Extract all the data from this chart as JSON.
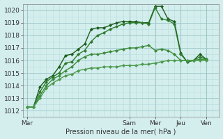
{
  "bg_color": "#d4eeee",
  "grid_color_major": "#a0c8c8",
  "grid_color_minor": "#b8dcdc",
  "xlabel": "Pression niveau de la mer( hPa )",
  "ylim": [
    1011.5,
    1020.5
  ],
  "yticks": [
    1012,
    1013,
    1014,
    1015,
    1016,
    1017,
    1018,
    1019,
    1020
  ],
  "xtick_labels": [
    "Mar",
    "Sam",
    "Mer",
    "Jeu",
    "Ven"
  ],
  "xtick_positions": [
    0,
    96,
    120,
    144,
    168
  ],
  "major_vlines": [
    0,
    96,
    120,
    144,
    168
  ],
  "xlim": [
    -4,
    180
  ],
  "series": [
    {
      "x": [
        0,
        6,
        12,
        18,
        24,
        30,
        36,
        42,
        48,
        54,
        60,
        66,
        72,
        78,
        84,
        90,
        96,
        102,
        108,
        114,
        120,
        126,
        132,
        138,
        144,
        150,
        156,
        162,
        168
      ],
      "y": [
        1012.3,
        1012.3,
        1013.9,
        1014.5,
        1014.8,
        1015.5,
        1016.4,
        1016.5,
        1016.9,
        1017.3,
        1018.5,
        1018.6,
        1018.6,
        1018.8,
        1019.0,
        1019.1,
        1019.1,
        1019.1,
        1019.0,
        1019.0,
        1020.3,
        1020.3,
        1019.3,
        1019.1,
        1016.6,
        1015.9,
        1016.0,
        1016.5,
        1016.1
      ],
      "marker": "D",
      "markersize": 2.0,
      "linewidth": 1.0,
      "color": "#1a5c1a"
    },
    {
      "x": [
        0,
        6,
        12,
        18,
        24,
        30,
        36,
        42,
        48,
        54,
        60,
        66,
        72,
        78,
        84,
        90,
        96,
        102,
        108,
        114,
        120,
        126,
        132,
        138,
        144,
        150,
        156,
        162,
        168
      ],
      "y": [
        1012.3,
        1012.3,
        1013.5,
        1014.3,
        1014.7,
        1015.0,
        1015.8,
        1015.9,
        1016.5,
        1016.8,
        1017.5,
        1018.0,
        1018.2,
        1018.5,
        1018.7,
        1018.9,
        1019.0,
        1019.0,
        1019.0,
        1018.9,
        1020.2,
        1019.3,
        1019.2,
        1018.9,
        1016.5,
        1015.9,
        1016.0,
        1016.3,
        1016.1
      ],
      "marker": "D",
      "markersize": 2.0,
      "linewidth": 1.0,
      "color": "#2d7a2d"
    },
    {
      "x": [
        0,
        6,
        12,
        18,
        24,
        30,
        36,
        42,
        48,
        54,
        60,
        66,
        72,
        78,
        84,
        90,
        96,
        102,
        108,
        114,
        120,
        126,
        132,
        138,
        144,
        150,
        156,
        162,
        168
      ],
      "y": [
        1012.3,
        1012.3,
        1013.2,
        1014.0,
        1014.5,
        1014.8,
        1015.2,
        1015.5,
        1016.0,
        1016.3,
        1016.5,
        1016.5,
        1016.6,
        1016.7,
        1016.8,
        1016.9,
        1017.0,
        1017.0,
        1017.1,
        1017.2,
        1016.8,
        1016.9,
        1016.8,
        1016.5,
        1016.0,
        1016.0,
        1016.0,
        1016.1,
        1016.1
      ],
      "marker": "D",
      "markersize": 2.0,
      "linewidth": 1.0,
      "color": "#3a8a3a"
    },
    {
      "x": [
        0,
        6,
        12,
        18,
        24,
        30,
        36,
        42,
        48,
        54,
        60,
        66,
        72,
        78,
        84,
        90,
        96,
        102,
        108,
        114,
        120,
        126,
        132,
        138,
        144,
        150,
        156,
        162,
        168
      ],
      "y": [
        1012.3,
        1012.3,
        1013.0,
        1013.8,
        1014.2,
        1014.5,
        1014.8,
        1014.9,
        1015.2,
        1015.3,
        1015.4,
        1015.4,
        1015.5,
        1015.5,
        1015.5,
        1015.6,
        1015.6,
        1015.6,
        1015.7,
        1015.7,
        1015.8,
        1015.9,
        1016.0,
        1016.0,
        1016.0,
        1016.0,
        1016.0,
        1016.0,
        1016.0
      ],
      "marker": "D",
      "markersize": 2.0,
      "linewidth": 1.0,
      "color": "#4a9a4a"
    }
  ]
}
